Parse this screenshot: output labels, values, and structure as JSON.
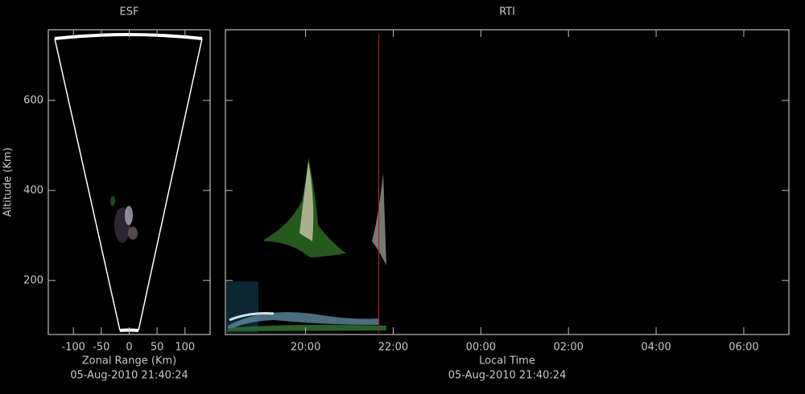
{
  "chart_data": [
    {
      "type": "sector",
      "title": "ESF",
      "x_label": "Zonal Range (Km)",
      "y_label": "Altitude (Km)",
      "subtitle": "05-Aug-2010 21:40:24",
      "xlim": [
        -145,
        145
      ],
      "xticks": [
        -100,
        -50,
        0,
        50,
        100
      ],
      "ylim": [
        80,
        757
      ],
      "yticks": [
        200,
        400,
        600
      ]
    },
    {
      "type": "rti",
      "title": "RTI",
      "x_label": "Local Time",
      "subtitle": "05-Aug-2010 21:40:24",
      "xlim": [
        18.17,
        31.03
      ],
      "xticks": [
        {
          "value": 20,
          "label": "20:00"
        },
        {
          "value": 22,
          "label": "22:00"
        },
        {
          "value": 24,
          "label": "00:00"
        },
        {
          "value": 26,
          "label": "02:00"
        },
        {
          "value": 28,
          "label": "04:00"
        },
        {
          "value": 30,
          "label": "06:00"
        }
      ],
      "ylim": [
        80,
        757
      ],
      "yticks": [
        200,
        400,
        600
      ],
      "marker_x": 21.67,
      "marker_color": "#b02020"
    }
  ]
}
